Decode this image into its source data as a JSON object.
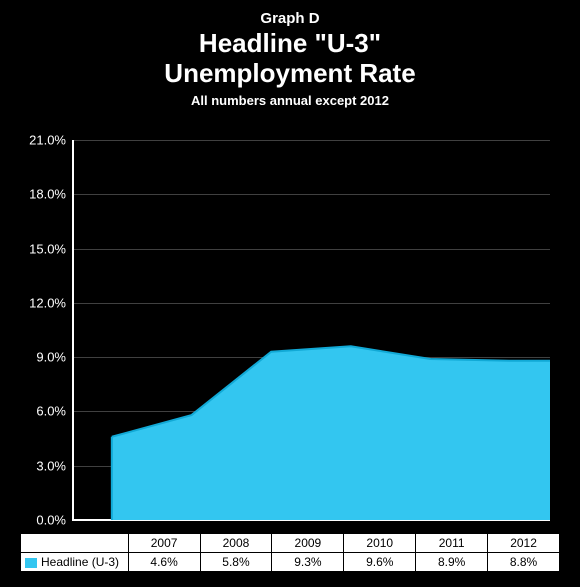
{
  "titles": {
    "graph_label": "Graph D",
    "line1": "Headline \"U-3\"",
    "line2": "Unemployment Rate",
    "subtitle": "All numbers annual except 2012"
  },
  "chart": {
    "type": "area",
    "background_color": "#000000",
    "text_color": "#ffffff",
    "grid_color": "#404040",
    "axis_color": "#ffffff",
    "series_color": "#33c6f0",
    "series_stroke": "#11a9d6",
    "ylim": [
      0,
      21
    ],
    "ytick_step": 3,
    "yticks": [
      "0.0%",
      "3.0%",
      "6.0%",
      "9.0%",
      "12.0%",
      "15.0%",
      "18.0%",
      "21.0%"
    ],
    "categories": [
      "2007",
      "2008",
      "2009",
      "2010",
      "2011",
      "2012"
    ],
    "series_name": "Headline (U-3)",
    "values": [
      4.6,
      5.8,
      9.3,
      9.6,
      8.9,
      8.8
    ],
    "value_labels": [
      "4.6%",
      "5.8%",
      "9.3%",
      "9.6%",
      "8.9%",
      "8.8%"
    ],
    "title_fontsize": 26,
    "label_fontsize": 13,
    "ytick_fontsize": 13
  }
}
